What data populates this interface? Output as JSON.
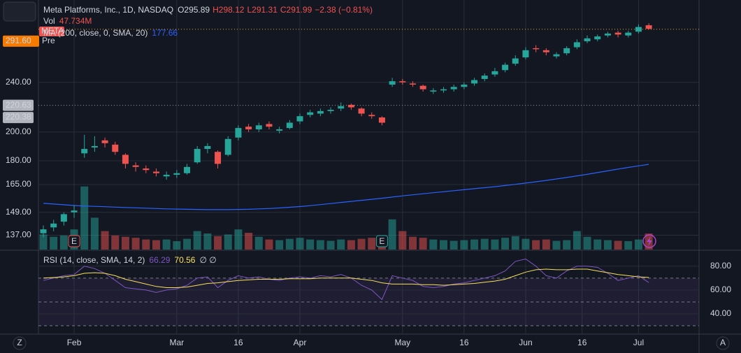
{
  "chart_data": {
    "type": "candlestick",
    "title": "Meta Platforms, Inc., 1D, NASDAQ",
    "ohlc_labels": [
      "O295.89",
      "H298.12",
      "L291.31",
      "C291.99",
      "−2.38 (−0.81%)"
    ],
    "series": [
      {
        "name": "META",
        "color_up": "#26a69a",
        "color_down": "#ef5350",
        "open": [
          138,
          141,
          144,
          149,
          185,
          189,
          194,
          191,
          184,
          177,
          175,
          173,
          170,
          171,
          172,
          179,
          188,
          186,
          184,
          196,
          204,
          202,
          206,
          201,
          203,
          208,
          213,
          214,
          216,
          218,
          221,
          218,
          213,
          211,
          238,
          241,
          239,
          237,
          232,
          233,
          234,
          236,
          239,
          243,
          247,
          251,
          257,
          263,
          272,
          270,
          264,
          267,
          273,
          279,
          281,
          285,
          288,
          285,
          289,
          295.89
        ],
        "high": [
          142,
          145,
          149,
          153,
          198,
          197,
          196,
          193,
          185,
          179,
          177,
          175,
          173,
          174,
          178,
          190,
          192,
          187,
          197,
          205,
          206,
          207,
          208,
          204,
          209,
          214,
          217,
          218,
          219,
          223,
          222,
          219,
          215,
          212,
          244,
          243,
          241,
          238,
          235,
          236,
          238,
          240,
          244,
          248,
          253,
          258,
          265,
          273,
          275,
          272,
          268,
          274,
          281,
          285,
          286,
          289,
          290,
          290,
          297,
          298.12
        ],
        "low": [
          136,
          139,
          142,
          146,
          182,
          186,
          189,
          184,
          175,
          173,
          172,
          170,
          168,
          169,
          171,
          178,
          185,
          175,
          183,
          194,
          200,
          200,
          202,
          199,
          202,
          206,
          211,
          212,
          214,
          216,
          217,
          212,
          210,
          205,
          236,
          238,
          236,
          232,
          230,
          231,
          232,
          234,
          237,
          241,
          245,
          249,
          255,
          261,
          268,
          265,
          262,
          265,
          271,
          277,
          279,
          283,
          283,
          283,
          287,
          291.31
        ],
        "close": [
          140,
          143,
          148,
          150,
          188,
          190,
          192,
          186,
          178,
          176,
          174,
          172,
          171,
          172,
          176,
          188,
          190,
          178,
          195,
          203,
          202,
          205,
          204,
          202,
          207,
          212,
          215,
          216,
          217,
          220,
          219,
          214,
          212,
          207,
          241,
          240,
          238,
          234,
          233,
          234,
          236,
          238,
          242,
          246,
          250,
          256,
          262,
          270,
          271,
          268,
          266,
          272,
          278,
          282,
          284,
          287,
          286,
          288,
          294,
          291.99
        ]
      }
    ],
    "volume": {
      "name": "Vol",
      "value_label": "47.734M",
      "values": [
        45,
        38,
        42,
        60,
        188,
        95,
        55,
        42,
        38,
        35,
        30,
        28,
        30,
        25,
        32,
        55,
        48,
        40,
        45,
        60,
        50,
        38,
        30,
        28,
        32,
        35,
        30,
        28,
        26,
        30,
        28,
        32,
        35,
        42,
        90,
        55,
        38,
        35,
        30,
        28,
        26,
        28,
        30,
        32,
        30,
        35,
        40,
        32,
        28,
        30,
        26,
        28,
        55,
        38,
        30,
        28,
        26,
        25,
        30,
        47.734
      ]
    },
    "ma": {
      "name": "MA (200, close, 0, SMA, 20)",
      "value_label": "177.66",
      "color": "#2962ff",
      "values": [
        154,
        153.6,
        153.2,
        152.8,
        152.5,
        152.3,
        152.1,
        151.9,
        151.7,
        151.5,
        151.3,
        151.1,
        150.9,
        150.8,
        150.7,
        150.6,
        150.5,
        150.5,
        150.5,
        150.6,
        150.7,
        150.9,
        151.1,
        151.4,
        151.8,
        152.2,
        152.7,
        153.3,
        153.9,
        154.5,
        155.1,
        155.7,
        156.3,
        156.9,
        157.6,
        158.3,
        158.9,
        159.5,
        160.1,
        160.7,
        161.3,
        161.9,
        162.5,
        163.1,
        163.7,
        164.4,
        165.1,
        165.9,
        166.7,
        167.5,
        168.4,
        169.3,
        170.3,
        171.3,
        172.4,
        173.5,
        174.6,
        175.7,
        176.7,
        177.66
      ]
    },
    "ylim": [
      130,
      318
    ],
    "log": true,
    "yticks": [
      {
        "value": 137,
        "label": "137.00"
      },
      {
        "value": 149,
        "label": "149.00"
      },
      {
        "value": 165,
        "label": "165.00"
      },
      {
        "value": 180,
        "label": "180.00"
      },
      {
        "value": 200,
        "label": "200.00"
      },
      {
        "value": 240,
        "label": "240.00"
      }
    ],
    "price_labels": [
      {
        "value": 220.63,
        "label": "220.63"
      },
      {
        "value": 220.38,
        "label": "220.38"
      }
    ],
    "pre": {
      "value": 291.6,
      "label": "291.60",
      "tag": "Pre"
    },
    "earnings": [
      {
        "index": 3,
        "label": "E"
      },
      {
        "index": 33,
        "label": "E"
      }
    ],
    "xticks": [
      {
        "value": 3,
        "label": "Feb"
      },
      {
        "value": 13,
        "label": "Mar"
      },
      {
        "value": 19,
        "label": "16"
      },
      {
        "value": 25,
        "label": "Apr"
      },
      {
        "value": 35,
        "label": "May"
      },
      {
        "value": 41,
        "label": "16"
      },
      {
        "value": 47,
        "label": "Jun"
      },
      {
        "value": 52.5,
        "label": "16"
      },
      {
        "value": 58,
        "label": "Jul"
      }
    ],
    "rsi": {
      "name": "RSI (14, close, SMA, 14, 2)",
      "value_label": "66.29",
      "ma_value_label": "70.56",
      "extra": "∅ ∅",
      "color": "#7e57c2",
      "ma_color": "#f7e15c",
      "values": [
        68,
        70,
        72,
        73,
        80,
        78,
        74,
        68,
        62,
        61,
        60,
        58,
        60,
        61,
        64,
        70,
        71,
        62,
        68,
        72,
        70,
        71,
        69,
        68,
        70,
        71,
        70,
        72,
        71,
        73,
        70,
        64,
        60,
        52,
        72,
        70,
        68,
        63,
        62,
        63,
        65,
        66,
        68,
        70,
        72,
        76,
        84,
        86,
        80,
        72,
        70,
        76,
        80,
        80,
        79,
        74,
        68,
        70,
        72,
        66.29
      ],
      "ma_values": [
        70,
        70.5,
        71,
        72,
        74,
        74.5,
        74,
        72,
        69,
        67,
        65,
        63,
        62,
        62,
        62.5,
        64,
        65.5,
        66,
        67,
        68,
        68.5,
        69,
        69,
        69,
        69.5,
        69.5,
        69.5,
        70,
        70,
        70,
        70,
        69,
        68,
        66,
        65,
        65,
        65,
        64.5,
        64.5,
        64,
        64.5,
        65,
        65.5,
        66.5,
        67.5,
        69,
        72,
        75,
        77,
        77.5,
        77,
        77,
        77.5,
        77.5,
        76,
        74.5,
        73,
        72,
        71,
        70.56
      ],
      "ylim": [
        23,
        91
      ],
      "yticks": [
        {
          "value": 40,
          "label": "40.00"
        },
        {
          "value": 60,
          "label": "60.00"
        },
        {
          "value": 80,
          "label": "80.00"
        }
      ],
      "bands": [
        30,
        50,
        70
      ]
    },
    "footer": [
      "Z",
      "A"
    ]
  }
}
